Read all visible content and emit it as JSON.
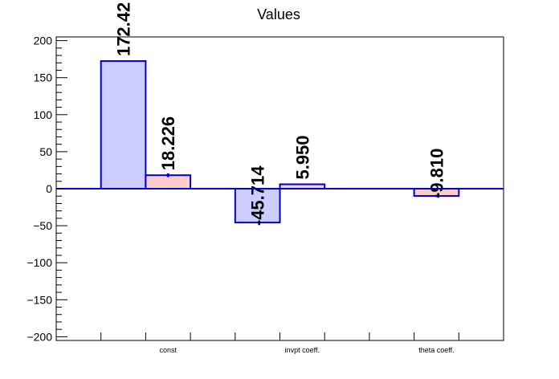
{
  "chart_data": {
    "type": "bar",
    "title": "Values",
    "xlabel": "",
    "ylabel": "",
    "ylim": [
      -205,
      205
    ],
    "yticks": [
      -200,
      -150,
      -100,
      -50,
      0,
      50,
      100,
      150,
      200
    ],
    "ytick_labels": [
      "−200",
      "−150",
      "−100",
      "−50",
      "0",
      "50",
      "100",
      "150",
      "200"
    ],
    "categories": [
      "const",
      "invpt coeff.",
      "theta coeff."
    ],
    "series": [
      {
        "values": [
          172.42,
          -45.714,
          0
        ],
        "labels": [
          "172.42",
          "-45.714",
          ""
        ],
        "errors": [
          0,
          0,
          0
        ],
        "fill": "#ccccff",
        "stroke": "#0000cc"
      },
      {
        "values": [
          18.226,
          5.95,
          -9.81
        ],
        "labels": [
          "18.226",
          "5.950",
          "-9.810"
        ],
        "errors": [
          2.5,
          0,
          1.5
        ],
        "fill": "#ffcccc",
        "stroke": "#0000cc"
      }
    ],
    "zero_line_color": "#0000cc",
    "grid": false,
    "legend": "none"
  }
}
